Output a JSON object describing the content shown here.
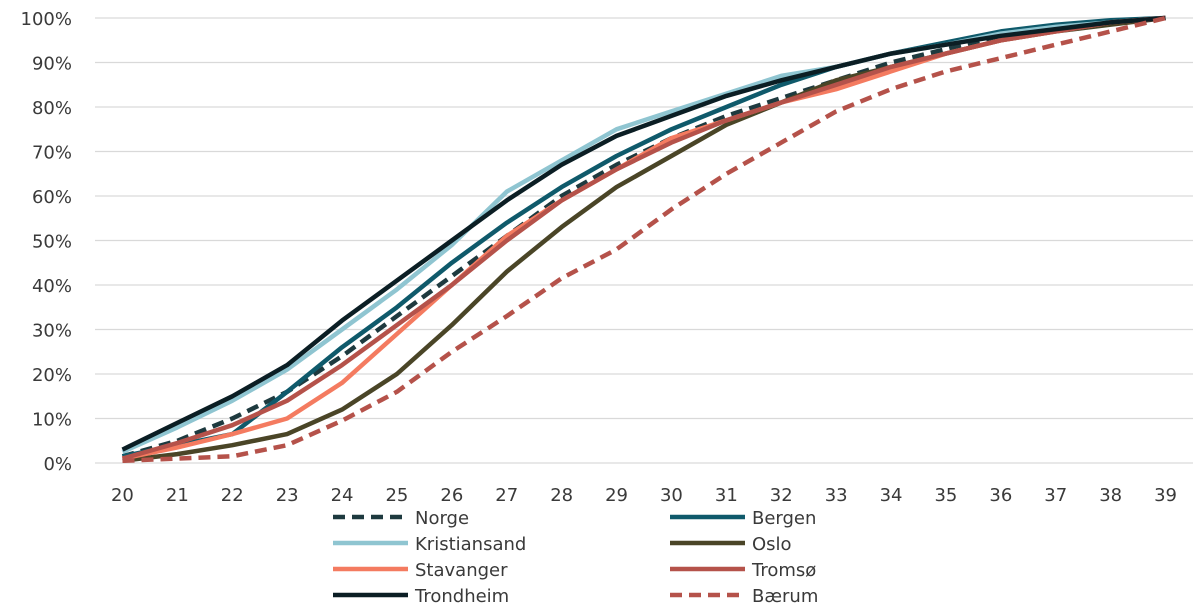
{
  "chart_data": {
    "type": "line",
    "title": "",
    "xlabel": "",
    "ylabel": "",
    "x": [
      20,
      21,
      22,
      23,
      24,
      25,
      26,
      27,
      28,
      29,
      30,
      31,
      32,
      33,
      34,
      35,
      36,
      37,
      38,
      39
    ],
    "ylim": [
      0,
      100
    ],
    "yticks": [
      0,
      10,
      20,
      30,
      40,
      50,
      60,
      70,
      80,
      90,
      100
    ],
    "ytick_labels": [
      "0%",
      "10%",
      "20%",
      "30%",
      "40%",
      "50%",
      "60%",
      "70%",
      "80%",
      "90%",
      "100%"
    ],
    "grid": "horizontal",
    "legend_position": "bottom",
    "series": [
      {
        "name": "Norge",
        "color": "#1e3a3f",
        "dash": true,
        "values": [
          1.5,
          5,
          10,
          16,
          24,
          33,
          42,
          51,
          60,
          67,
          73,
          78,
          82,
          86,
          90,
          93,
          96,
          98,
          99,
          100
        ]
      },
      {
        "name": "Bergen",
        "color": "#0f5a6b",
        "dash": false,
        "values": [
          1.5,
          4,
          6.5,
          16,
          26,
          35,
          45,
          54,
          62,
          69,
          75,
          80,
          85,
          89,
          92,
          94.5,
          97,
          98.5,
          99.5,
          100
        ]
      },
      {
        "name": "Kristiansand",
        "color": "#8fc5d1",
        "dash": false,
        "values": [
          2.5,
          8,
          14,
          21,
          30,
          39,
          49,
          61,
          68,
          75,
          79,
          83,
          87,
          89,
          92,
          94,
          96.5,
          98,
          99,
          100
        ]
      },
      {
        "name": "Oslo",
        "color": "#4a4527",
        "dash": false,
        "values": [
          0.5,
          2,
          4,
          6.5,
          12,
          20,
          31,
          43,
          53,
          62,
          69,
          76,
          81,
          86,
          89,
          92,
          95,
          97,
          98.5,
          100
        ]
      },
      {
        "name": "Stavanger",
        "color": "#f47b60",
        "dash": false,
        "values": [
          1,
          3.5,
          6.5,
          10,
          18,
          29,
          40,
          51,
          59,
          66,
          73,
          77,
          81,
          84,
          88,
          92,
          95,
          97,
          99,
          100
        ]
      },
      {
        "name": "Tromsø",
        "color": "#b5524a",
        "dash": false,
        "values": [
          1,
          4.5,
          8.5,
          14,
          22,
          31,
          40,
          50,
          59,
          66,
          72,
          77,
          81,
          85,
          89,
          92,
          95,
          97,
          99,
          100
        ]
      },
      {
        "name": "Trondheim",
        "color": "#0b1e24",
        "dash": false,
        "values": [
          3,
          9,
          15,
          22,
          32,
          41,
          50,
          59,
          67,
          73.5,
          78,
          82.5,
          86,
          89,
          92,
          94,
          96,
          97.5,
          99,
          100
        ]
      },
      {
        "name": "Bærum",
        "color": "#b5524a",
        "dash": true,
        "values": [
          0.5,
          1,
          1.5,
          4,
          9.5,
          16,
          25,
          33,
          41.5,
          48,
          57,
          65,
          72,
          79,
          84,
          88,
          91,
          94,
          97,
          100
        ]
      }
    ]
  }
}
